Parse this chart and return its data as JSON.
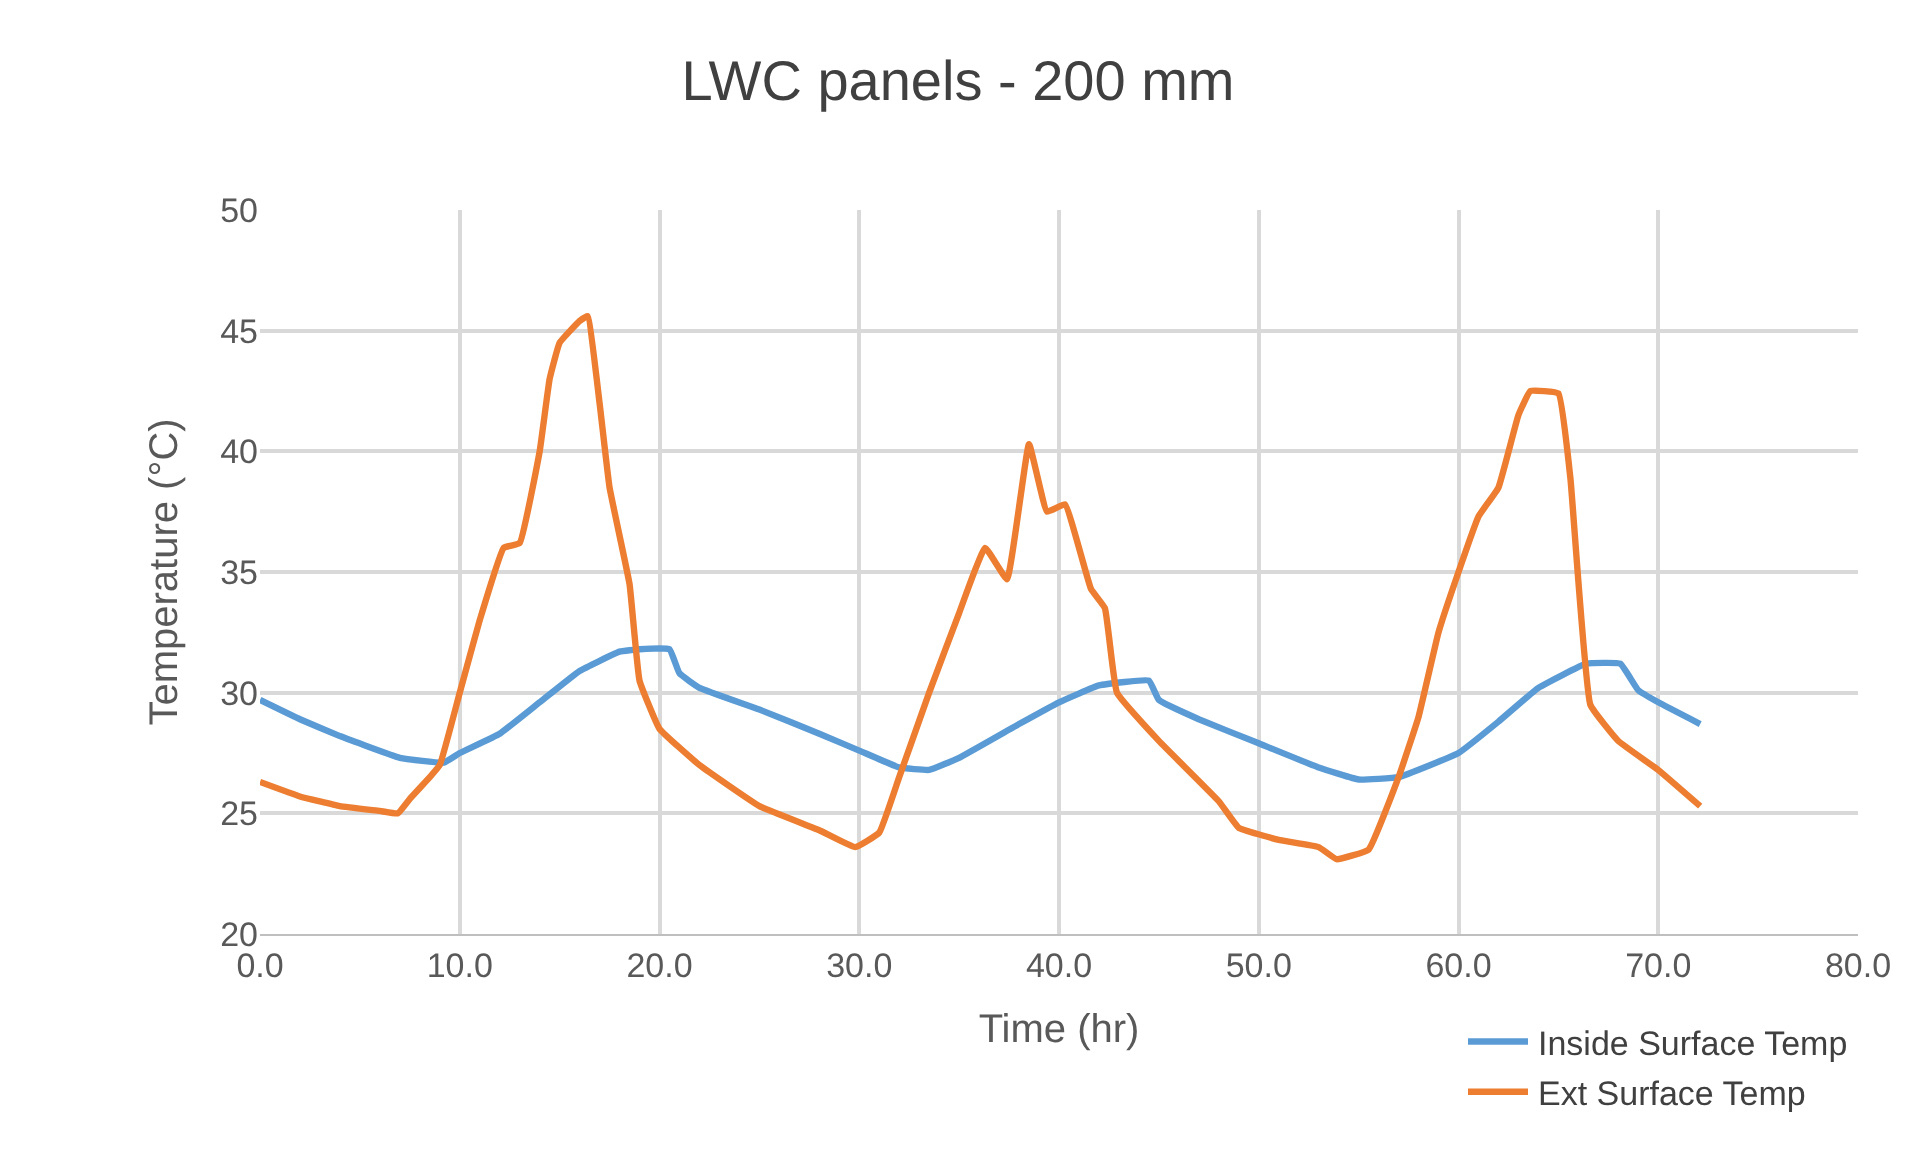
{
  "chart_data": {
    "type": "line",
    "title": "LWC panels - 200 mm",
    "xlabel": "Time (hr)",
    "ylabel": "Temperature (°C)",
    "xlim": [
      0,
      80
    ],
    "xticks": [
      {
        "value": 0,
        "label": "0.0"
      },
      {
        "value": 10,
        "label": "10.0"
      },
      {
        "value": 20,
        "label": "20.0"
      },
      {
        "value": 30,
        "label": "30.0"
      },
      {
        "value": 40,
        "label": "40.0"
      },
      {
        "value": 50,
        "label": "50.0"
      },
      {
        "value": 60,
        "label": "60.0"
      },
      {
        "value": 70,
        "label": "70.0"
      },
      {
        "value": 80,
        "label": "80.0"
      }
    ],
    "ylim": [
      20,
      50
    ],
    "yticks": [
      20,
      25,
      30,
      35,
      40,
      45,
      50
    ],
    "grid": true,
    "legend": "bottom right",
    "marker": "none",
    "line_style": "solid",
    "series": [
      {
        "name": "Inside Surface Temp",
        "color": "#5b9bd5",
        "x": [
          0,
          2,
          4,
          7,
          9.2,
          10,
          12,
          14,
          16,
          18,
          19,
          20.5,
          21,
          22,
          25,
          28,
          30,
          32,
          33.5,
          35,
          38,
          40,
          42,
          44.5,
          45,
          47,
          50,
          53,
          55,
          57,
          60,
          62,
          64,
          66.4,
          68.1,
          69,
          70,
          72.1
        ],
        "values": [
          29.7,
          28.9,
          28.2,
          27.3,
          27.1,
          27.5,
          28.3,
          29.6,
          30.9,
          31.7,
          31.8,
          31.8,
          30.8,
          30.2,
          29.3,
          28.3,
          27.6,
          26.9,
          26.8,
          27.3,
          28.7,
          29.6,
          30.3,
          30.5,
          29.7,
          28.9,
          27.9,
          26.9,
          26.4,
          26.5,
          27.5,
          28.8,
          30.2,
          31.2,
          31.2,
          30.1,
          29.6,
          28.7
        ]
      },
      {
        "name": "Ext Surface Temp",
        "color": "#ed7d31",
        "x": [
          0,
          2,
          4,
          6,
          6.9,
          7.5,
          8.5,
          9,
          10,
          11,
          12.2,
          13,
          14,
          14.5,
          15,
          16,
          16.4,
          17,
          17.5,
          18.5,
          19,
          20,
          22,
          25,
          28,
          29.8,
          31,
          32,
          33.5,
          35,
          36.3,
          37.4,
          38.5,
          39.4,
          40.3,
          41.6,
          42.3,
          42.9,
          45,
          48,
          49,
          51,
          53,
          53.9,
          55.5,
          57,
          58,
          59,
          60,
          61,
          62,
          63,
          63.6,
          65,
          65.6,
          66.6,
          68,
          70,
          72.1
        ],
        "values": [
          26.3,
          25.7,
          25.3,
          25.1,
          25.0,
          25.6,
          26.5,
          27.0,
          30.0,
          33.0,
          36.0,
          36.2,
          40.0,
          43.0,
          44.5,
          45.4,
          45.6,
          42.0,
          38.5,
          34.5,
          30.5,
          28.5,
          27.0,
          25.3,
          24.3,
          23.6,
          24.2,
          26.5,
          30.0,
          33.3,
          36.0,
          34.7,
          40.3,
          37.5,
          37.8,
          34.3,
          33.5,
          30.0,
          28.0,
          25.5,
          24.4,
          23.9,
          23.6,
          23.1,
          23.5,
          26.5,
          29.0,
          32.5,
          35.0,
          37.3,
          38.5,
          41.5,
          42.5,
          42.4,
          38.9,
          29.5,
          28.0,
          26.8,
          25.3
        ]
      }
    ]
  }
}
